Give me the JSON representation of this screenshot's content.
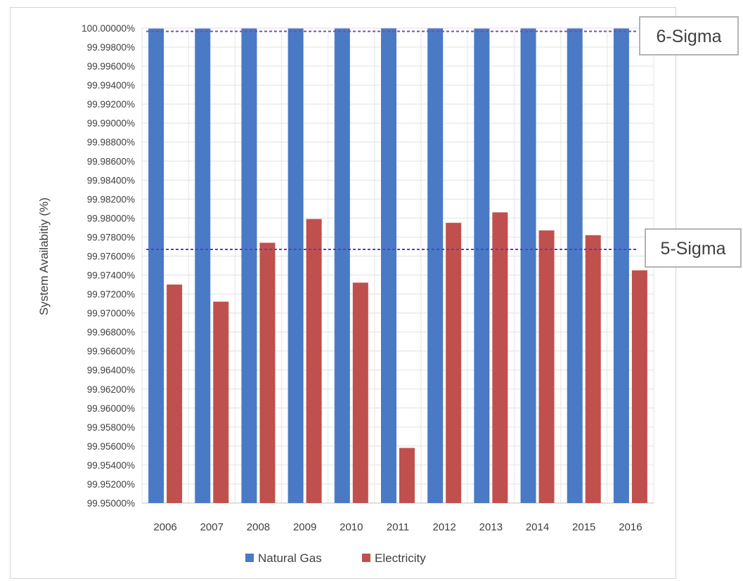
{
  "chart_data": {
    "type": "bar",
    "title": "",
    "xlabel": "",
    "ylabel": "System Availabitiy (%)",
    "ylim": [
      99.95,
      100.0
    ],
    "ytick_step": 0.002,
    "yticks": [
      "100.00000%",
      "99.99800%",
      "99.99600%",
      "99.99400%",
      "99.99200%",
      "99.99000%",
      "99.98800%",
      "99.98600%",
      "99.98400%",
      "99.98200%",
      "99.98000%",
      "99.97800%",
      "99.97600%",
      "99.97400%",
      "99.97200%",
      "99.97000%",
      "99.96800%",
      "99.96600%",
      "99.96400%",
      "99.96200%",
      "99.96000%",
      "99.95800%",
      "99.95600%",
      "99.95400%",
      "99.95200%",
      "99.95000%"
    ],
    "categories": [
      "2006",
      "2007",
      "2008",
      "2009",
      "2010",
      "2011",
      "2012",
      "2013",
      "2014",
      "2015",
      "2016"
    ],
    "series": [
      {
        "name": "Natural Gas",
        "color": "#4a7ac6",
        "values": [
          99.99995,
          99.99995,
          99.99996,
          99.99996,
          99.99996,
          99.99997,
          99.99997,
          99.99995,
          99.99996,
          99.99996,
          99.99996
        ]
      },
      {
        "name": "Electricity",
        "color": "#c0504d",
        "values": [
          99.973,
          99.9712,
          99.9774,
          99.9799,
          99.9732,
          99.9558,
          99.9795,
          99.9806,
          99.9787,
          99.9782,
          99.9745
        ]
      }
    ],
    "reference_lines": [
      {
        "label": "6-Sigma",
        "value": 99.99966,
        "color": "#7b4fa0"
      },
      {
        "label": "5-Sigma",
        "value": 99.9767,
        "color": "#5a3fb8"
      }
    ],
    "grid": true,
    "legend": "bottom"
  }
}
